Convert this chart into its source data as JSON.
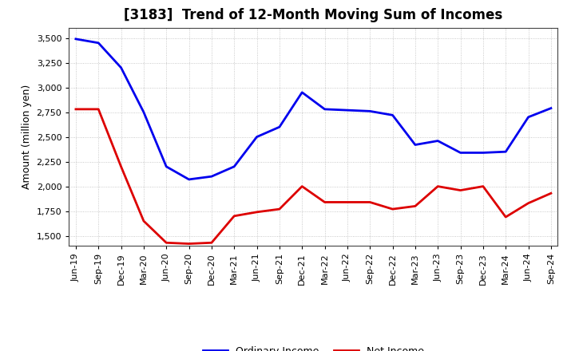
{
  "title": "[3183]  Trend of 12-Month Moving Sum of Incomes",
  "ylabel": "Amount (million yen)",
  "ylim": [
    1400,
    3600
  ],
  "yticks": [
    1500,
    1750,
    2000,
    2250,
    2500,
    2750,
    3000,
    3250,
    3500
  ],
  "x_labels": [
    "Jun-19",
    "Sep-19",
    "Dec-19",
    "Mar-20",
    "Jun-20",
    "Sep-20",
    "Dec-20",
    "Mar-21",
    "Jun-21",
    "Sep-21",
    "Dec-21",
    "Mar-22",
    "Jun-22",
    "Sep-22",
    "Dec-22",
    "Mar-23",
    "Jun-23",
    "Sep-23",
    "Dec-23",
    "Mar-24",
    "Jun-24",
    "Sep-24"
  ],
  "ordinary_income": [
    3490,
    3450,
    3200,
    2750,
    2200,
    2070,
    2100,
    2200,
    2500,
    2600,
    2950,
    2780,
    2770,
    2760,
    2720,
    2420,
    2460,
    2340,
    2340,
    2350,
    2700,
    2790
  ],
  "net_income": [
    2780,
    2780,
    2200,
    1650,
    1430,
    1420,
    1430,
    1700,
    1740,
    1770,
    2000,
    1840,
    1840,
    1840,
    1770,
    1800,
    2000,
    1960,
    2000,
    1690,
    1830,
    1930
  ],
  "ordinary_color": "#0000EE",
  "net_color": "#DD0000",
  "background_color": "#FFFFFF",
  "plot_bg_color": "#FFFFFF",
  "grid_color": "#BBBBBB",
  "line_width": 2.0,
  "title_fontsize": 12,
  "axis_fontsize": 8,
  "ylabel_fontsize": 9,
  "legend_labels": [
    "Ordinary Income",
    "Net Income"
  ]
}
